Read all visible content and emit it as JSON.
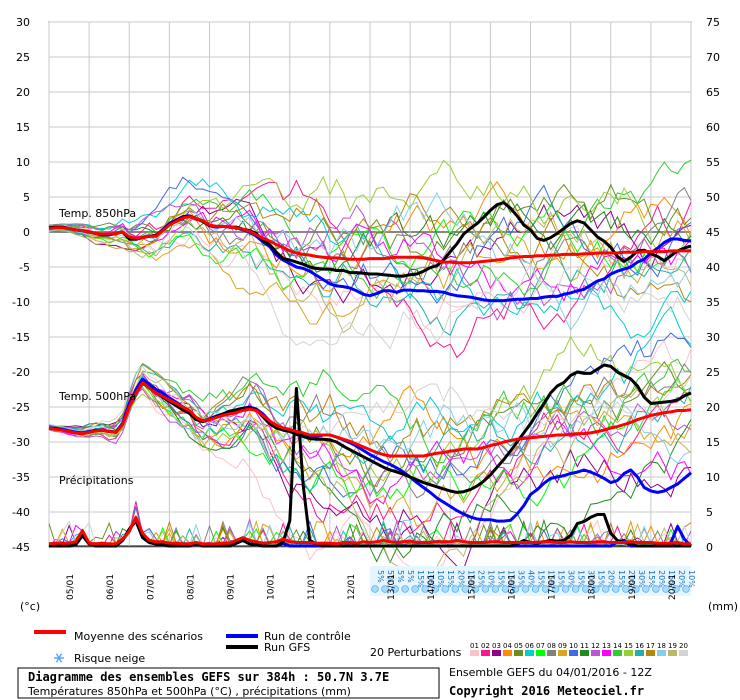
{
  "chart_data": {
    "type": "line",
    "left_axis_unit": "(°c)",
    "right_axis_unit": "(mm)",
    "left_ticks": [
      30,
      25,
      20,
      15,
      10,
      5,
      0,
      -5,
      -10,
      -15,
      -20,
      -25,
      -30,
      -35,
      -40,
      -45
    ],
    "right_ticks": [
      75,
      70,
      65,
      60,
      55,
      50,
      45,
      40,
      35,
      30,
      25,
      20,
      15,
      10,
      5,
      0
    ],
    "x_labels": [
      "05/01",
      "06/01",
      "07/01",
      "08/01",
      "09/01",
      "10/01",
      "11/01",
      "12/01",
      "13/01",
      "14/01",
      "15/01",
      "16/01",
      "17/01",
      "18/01",
      "19/01",
      "20/01"
    ],
    "annotations": {
      "t850": "Temp. 850hPa",
      "t500": "Temp. 500hPa",
      "precip": "Précipitations"
    },
    "snow_risk": [
      "5%",
      "5%",
      "5%",
      "5%",
      "15%",
      "10%",
      "10%",
      "15%",
      "20%",
      "15%",
      "25%",
      "10%",
      "15%",
      "15%",
      "35%",
      "40%",
      "15%",
      "15%",
      "15%",
      "30%",
      "15%",
      "30%",
      "15%",
      "20%",
      "15%",
      "20%",
      "30%",
      "15%",
      "20%",
      "15%",
      "20%",
      "10%"
    ],
    "x": [
      0,
      4,
      8,
      12,
      16,
      20,
      24,
      28,
      32,
      36,
      40,
      44,
      48,
      52,
      56,
      60,
      64,
      68,
      72,
      76,
      80,
      84,
      88,
      92,
      96,
      100,
      104,
      108,
      112,
      116,
      120,
      124,
      128,
      132,
      136,
      140,
      144,
      148,
      152,
      156,
      160,
      164,
      168,
      172,
      176,
      180,
      184,
      188,
      192,
      196,
      200,
      204,
      208,
      212,
      216,
      220,
      224,
      228,
      232,
      236,
      240,
      244,
      248,
      252,
      256,
      260,
      264,
      268,
      272,
      276,
      280,
      284,
      288,
      292,
      296,
      300,
      304,
      308,
      312,
      316,
      320,
      324,
      328,
      332,
      336,
      340,
      344,
      348,
      352,
      356,
      360,
      364,
      368,
      372,
      376,
      380,
      384
    ],
    "series": [
      {
        "name": "Moyenne des scénarios",
        "color": "#ff0000",
        "group": "t850",
        "values": [
          0.5,
          0.6,
          0.6,
          0.5,
          0.3,
          0.2,
          0,
          -0.2,
          -0.3,
          -0.3,
          -0.2,
          0,
          -0.7,
          -0.9,
          -0.8,
          -0.6,
          -0.6,
          0.2,
          1,
          1.5,
          2,
          2.2,
          1.9,
          1.6,
          1,
          0.8,
          0.8,
          0.7,
          0.6,
          0.4,
          0.1,
          -0.4,
          -0.9,
          -1.3,
          -1.8,
          -2.2,
          -2.7,
          -3,
          -3.2,
          -3.3,
          -3.5,
          -3.6,
          -3.7,
          -3.7,
          -3.8,
          -3.9,
          -3.9,
          -3.9,
          -3.8,
          -3.8,
          -3.8,
          -3.7,
          -3.6,
          -3.6,
          -3.6,
          -3.6,
          -3.7,
          -3.9,
          -4.1,
          -4.3,
          -4.3,
          -4.4,
          -4.4,
          -4.4,
          -4.3,
          -4.2,
          -4.1,
          -4,
          -3.9,
          -3.7,
          -3.6,
          -3.5,
          -3.5,
          -3.4,
          -3.4,
          -3.3,
          -3.3,
          -3.2,
          -3.2,
          -3.2,
          -3.1,
          -3.1,
          -3,
          -3,
          -3,
          -3,
          -2.9,
          -2.9,
          -2.9,
          -2.8,
          -2.8,
          -2.8,
          -2.8,
          -2.7,
          -2.7,
          -2.7,
          -2.7
        ]
      },
      {
        "name": "Run de contrôle",
        "color": "#0000ff",
        "group": "t850",
        "values": [
          0.6,
          0.7,
          0.7,
          0.5,
          0.3,
          0.2,
          0,
          -0.2,
          -0.4,
          -0.4,
          -0.2,
          0,
          -1,
          -1,
          -0.8,
          -0.6,
          -0.5,
          0.3,
          1.2,
          1.7,
          2.2,
          2.3,
          1.9,
          1.6,
          0.9,
          0.7,
          0.8,
          0.7,
          0.6,
          0.3,
          0,
          -0.6,
          -1.4,
          -2.1,
          -3.3,
          -4,
          -4.5,
          -5,
          -5.2,
          -5.6,
          -6.2,
          -6.8,
          -7.4,
          -7.7,
          -7.8,
          -8,
          -8.4,
          -8.9,
          -9.1,
          -8.8,
          -8.4,
          -8.4,
          -8.6,
          -8.3,
          -8.3,
          -8.4,
          -8.4,
          -8.5,
          -8.5,
          -8.6,
          -8.9,
          -9.1,
          -9.2,
          -9.3,
          -9.5,
          -9.7,
          -9.8,
          -9.8,
          -9.8,
          -9.7,
          -9.6,
          -9.6,
          -9.5,
          -9.5,
          -9.3,
          -9.2,
          -9.2,
          -8.9,
          -8.7,
          -8.4,
          -8.2,
          -7.6,
          -7,
          -6.7,
          -6,
          -5.6,
          -5.3,
          -5,
          -4.3,
          -3.9,
          -3,
          -2.3,
          -1.5,
          -1,
          -1,
          -1.2,
          -1.3
        ]
      },
      {
        "name": "Run GFS",
        "color": "#000000",
        "group": "t850",
        "values": [
          0.6,
          0.7,
          0.7,
          0.5,
          0.3,
          0.2,
          0,
          -0.2,
          -0.4,
          -0.4,
          -0.2,
          0,
          -1,
          -1,
          -0.8,
          -0.6,
          -0.5,
          0.2,
          1.1,
          1.6,
          2.1,
          2.3,
          1.9,
          1.5,
          0.9,
          0.8,
          0.8,
          0.7,
          0.7,
          0.4,
          0.2,
          -0.2,
          -1.2,
          -1.8,
          -2.9,
          -3.8,
          -4,
          -4.3,
          -4.6,
          -5,
          -5.2,
          -5.3,
          -5.3,
          -5.5,
          -5.5,
          -5.8,
          -5.8,
          -5.9,
          -6,
          -6,
          -6.1,
          -6.2,
          -6.3,
          -6.3,
          -6.1,
          -6,
          -5.6,
          -5.1,
          -4.8,
          -4,
          -2.8,
          -1.7,
          -0.3,
          0.5,
          1.2,
          2.1,
          3.1,
          3.9,
          4.2,
          3.4,
          2.3,
          1,
          0.3,
          -0.9,
          -1.2,
          -0.8,
          -0.2,
          0.5,
          1.2,
          1.6,
          1.3,
          0.3,
          -0.7,
          -1.3,
          -2.2,
          -3.5,
          -4.2,
          -3.6,
          -2.7,
          -2.6,
          -3.1,
          -3.5,
          -4.1,
          -3.4,
          -2.7,
          -2.3,
          -2
        ]
      },
      {
        "name": "Moyenne des scénarios",
        "color": "#ff0000",
        "group": "t500",
        "values": [
          -28,
          -28.2,
          -28.3,
          -28.5,
          -28.7,
          -28.8,
          -28.6,
          -28.4,
          -28.3,
          -28.5,
          -28.6,
          -27.5,
          -25,
          -23,
          -21.5,
          -22.3,
          -23,
          -23.5,
          -24,
          -24.5,
          -25,
          -25.5,
          -26.5,
          -27,
          -26.8,
          -26.5,
          -26.2,
          -26,
          -25.8,
          -25.5,
          -25.3,
          -25.5,
          -26.2,
          -27,
          -27.6,
          -28,
          -28.2,
          -28.5,
          -28.7,
          -29,
          -29,
          -29,
          -29,
          -29.3,
          -29.6,
          -29.9,
          -30.3,
          -30.7,
          -31.1,
          -31.5,
          -31.8,
          -32,
          -32,
          -32,
          -32,
          -32,
          -32,
          -31.8,
          -31.6,
          -31.5,
          -31.3,
          -31.2,
          -31,
          -31,
          -31,
          -30.8,
          -30.5,
          -30.3,
          -30,
          -29.8,
          -29.6,
          -29.5,
          -29.4,
          -29.3,
          -29.2,
          -29.1,
          -29,
          -29,
          -28.9,
          -28.8,
          -28.8,
          -28.7,
          -28.5,
          -28.3,
          -28,
          -27.8,
          -27.5,
          -27.2,
          -26.8,
          -26.5,
          -26.2,
          -26,
          -25.8,
          -25.7,
          -25.5,
          -25.5,
          -25.4
        ]
      },
      {
        "name": "Run de contrôle",
        "color": "#0000ff",
        "group": "t500",
        "values": [
          -28,
          -28.1,
          -28.2,
          -28.4,
          -28.6,
          -28.7,
          -28.5,
          -28.3,
          -28.3,
          -28.5,
          -28.6,
          -27.3,
          -24.5,
          -22.5,
          -21,
          -21.8,
          -22.5,
          -23,
          -23.7,
          -24.3,
          -25,
          -25.6,
          -26.5,
          -27,
          -26.7,
          -26.3,
          -26,
          -25.6,
          -25.4,
          -25.2,
          -25,
          -25.3,
          -26,
          -27,
          -27.7,
          -28,
          -28.3,
          -28.6,
          -29,
          -29.3,
          -29.2,
          -29,
          -29,
          -29.3,
          -29.7,
          -30.1,
          -30.6,
          -31.2,
          -31.8,
          -32.3,
          -32.8,
          -33.2,
          -33.7,
          -34.3,
          -35,
          -35.8,
          -36.5,
          -37.2,
          -38,
          -38.6,
          -39.2,
          -39.8,
          -40.3,
          -40.7,
          -41,
          -41.1,
          -41.1,
          -41.3,
          -41.3,
          -41.2,
          -40.3,
          -39.1,
          -37.5,
          -36.8,
          -35.9,
          -35.2,
          -35,
          -34.8,
          -34.5,
          -34.3,
          -34,
          -34.3,
          -34.7,
          -35.2,
          -35.8,
          -35.5,
          -34.5,
          -34,
          -35,
          -36.5,
          -37,
          -37.2,
          -37,
          -36.5,
          -36,
          -35.2,
          -34.4
        ]
      },
      {
        "name": "Run GFS",
        "color": "#000000",
        "group": "t500",
        "values": [
          -28,
          -28.1,
          -28.3,
          -28.5,
          -28.7,
          -28.8,
          -28.6,
          -28.4,
          -28.3,
          -28.5,
          -28.6,
          -27.5,
          -25,
          -23,
          -21.5,
          -22.3,
          -23,
          -23.6,
          -24.2,
          -24.8,
          -25.4,
          -25.9,
          -26.8,
          -27.1,
          -26.8,
          -26.4,
          -26,
          -25.6,
          -25.4,
          -25.2,
          -25.1,
          -25.4,
          -26.4,
          -27.4,
          -28,
          -28.3,
          -28.5,
          -28.9,
          -29.2,
          -29.5,
          -29.6,
          -29.6,
          -29.7,
          -30,
          -30.6,
          -31.1,
          -31.6,
          -32.1,
          -32.6,
          -33.1,
          -33.6,
          -34,
          -34.3,
          -34.6,
          -35,
          -35.4,
          -35.8,
          -36.1,
          -36.4,
          -36.7,
          -37,
          -37.2,
          -37.1,
          -36.8,
          -36.3,
          -35.6,
          -34.7,
          -33.6,
          -32.5,
          -31.3,
          -30,
          -28.7,
          -27.4,
          -25.9,
          -24.5,
          -23,
          -22,
          -21.5,
          -20.5,
          -20,
          -20.2,
          -20.2,
          -19.6,
          -19,
          -19.2,
          -20,
          -20.5,
          -21,
          -22,
          -23.6,
          -24.5,
          -24.4,
          -24.3,
          -24.2,
          -24,
          -23.4,
          -23
        ]
      },
      {
        "name": "Moyenne des scénarios",
        "color": "#ff0000",
        "group": "precip",
        "values": [
          0.3,
          0.4,
          0.4,
          0.4,
          0.6,
          2.2,
          0.4,
          0.3,
          0.4,
          0.3,
          0.3,
          1,
          2.1,
          4.1,
          1.8,
          0.8,
          0.6,
          0.6,
          0.4,
          0.4,
          0.3,
          0.3,
          0.5,
          0.3,
          0.3,
          0.3,
          0.4,
          0.4,
          0.8,
          1.2,
          0.8,
          0.6,
          0.4,
          0.5,
          0.6,
          1,
          0.6,
          0.5,
          0.5,
          0.5,
          0.4,
          0.4,
          0.4,
          0.3,
          0.5,
          0.5,
          0.4,
          0.6,
          0.5,
          0.6,
          0.8,
          0.6,
          0.5,
          0.6,
          0.7,
          0.5,
          0.5,
          0.5,
          0.6,
          0.6,
          0.6,
          0.8,
          0.6,
          0.5,
          0.5,
          0.5,
          0.6,
          0.6,
          0.5,
          0.5,
          0.5,
          0.5,
          0.5,
          0.5,
          0.6,
          0.6,
          0.5,
          0.5,
          0.6,
          0.5,
          0.5,
          0.5,
          0.6,
          0.6,
          0.5,
          0.5,
          0.5,
          0.6,
          0.5,
          0.5,
          0.5,
          0.4,
          0.4,
          0.4,
          0.5,
          0.3,
          0.3
        ]
      },
      {
        "name": "Run de contrôle",
        "color": "#0000ff",
        "group": "precip",
        "values": [
          0,
          0,
          0,
          0,
          0.2,
          1.5,
          0.3,
          0,
          0,
          0,
          0,
          0.8,
          2.4,
          3.6,
          1.2,
          0.5,
          0.3,
          0.2,
          0,
          0,
          0,
          0,
          0.3,
          0,
          0,
          0,
          0,
          0,
          0.4,
          0.8,
          0.3,
          0.2,
          0,
          0,
          0,
          0.4,
          0,
          0,
          0,
          0,
          0,
          0,
          0,
          0,
          0,
          0,
          0,
          0,
          0,
          0,
          0,
          0,
          0,
          0,
          0,
          0,
          0,
          0,
          0,
          0,
          0,
          0,
          0,
          0,
          0,
          0,
          0,
          0,
          0,
          0,
          0,
          0,
          0,
          0,
          0,
          0,
          0,
          0,
          0,
          0,
          0,
          0,
          0,
          0,
          0,
          0.6,
          0.8,
          0,
          0,
          0,
          0,
          0,
          0,
          0.5,
          2.8,
          1,
          0
        ]
      },
      {
        "name": "Run GFS",
        "color": "#000000",
        "group": "precip",
        "values": [
          0,
          0,
          0,
          0,
          0.2,
          1.5,
          0.3,
          0,
          0,
          0,
          0,
          0.8,
          2.4,
          3.6,
          1.2,
          0.5,
          0.3,
          0.2,
          0,
          0,
          0,
          0,
          0.3,
          0,
          0,
          0,
          0,
          0,
          0.4,
          0.8,
          0.3,
          0.2,
          0,
          0,
          0,
          0.6,
          3.6,
          22.5,
          8.8,
          0.8,
          0.3,
          0,
          0,
          0,
          0,
          0,
          0,
          0,
          0,
          0,
          0,
          0,
          0,
          0,
          0,
          0,
          0,
          0,
          0,
          0,
          0,
          0,
          0,
          0,
          0,
          0,
          0,
          0,
          0,
          0,
          0.3,
          0.8,
          0.5,
          0.4,
          0.6,
          0.8,
          0.7,
          0.8,
          1.5,
          3.2,
          3.5,
          4.1,
          4.5,
          4.5,
          1.8,
          0.8,
          0.5,
          0.3,
          0,
          0,
          0,
          0,
          0,
          0,
          0,
          0,
          0
        ]
      }
    ],
    "perturbation_colors": [
      "#ffc0cb",
      "#ff1493",
      "#8b008b",
      "#ff8c00",
      "#6b8e23",
      "#00ced1",
      "#00ff00",
      "#808080",
      "#daa520",
      "#4169e1",
      "#228b22",
      "#ba55d3",
      "#ff00ff",
      "#32cd32",
      "#9acd32",
      "#20b2aa",
      "#b8860b",
      "#87ceeb",
      "#bdb76b",
      "#d3d3d3"
    ]
  },
  "legend": {
    "mean": "Moyenne des scénarios",
    "control": "Run de contrôle",
    "gfs": "Run GFS",
    "snow": "Risque neige",
    "perturb": "20 Perturbations",
    "perturb_nums": [
      "01",
      "02",
      "03",
      "04",
      "05",
      "06",
      "07",
      "08",
      "09",
      "10",
      "11",
      "12",
      "13",
      "14",
      "15",
      "16",
      "17",
      "18",
      "19",
      "20"
    ]
  },
  "footer": {
    "title": "Diagramme des ensembles GEFS sur 384h : 50.7N 3.7E",
    "subtitle": "Températures 850hPa et 500hPa (°C) , précipitations (mm)",
    "run": "Ensemble GEFS du 04/01/2016 - 12Z",
    "copyright": "Copyright 2016 Meteociel.fr"
  }
}
